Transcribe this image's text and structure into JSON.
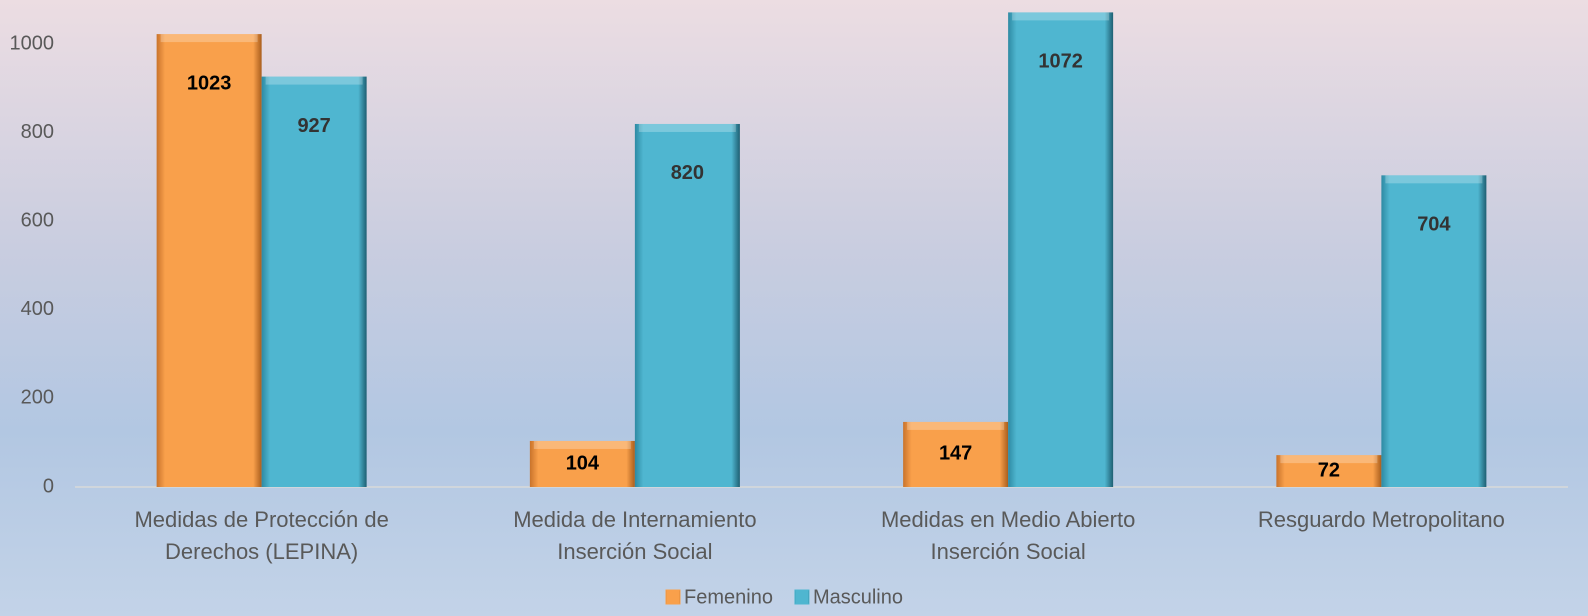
{
  "chart_data": {
    "type": "bar",
    "categories": [
      "Medidas de Protección de Derechos (LEPINA)",
      "Medida de Internamiento Inserción Social",
      "Medidas en Medio Abierto Inserción Social",
      "Resguardo Metropolitano"
    ],
    "series": [
      {
        "name": "Femenino",
        "color": "#f9a04b",
        "values": [
          1023,
          104,
          147,
          72
        ]
      },
      {
        "name": "Masculino",
        "color": "#4fb6d0",
        "values": [
          927,
          820,
          1072,
          704
        ]
      }
    ],
    "ylim": [
      0,
      1100
    ],
    "yticks": [
      0,
      200,
      400,
      600,
      800,
      1000
    ],
    "legend": "bottom"
  }
}
